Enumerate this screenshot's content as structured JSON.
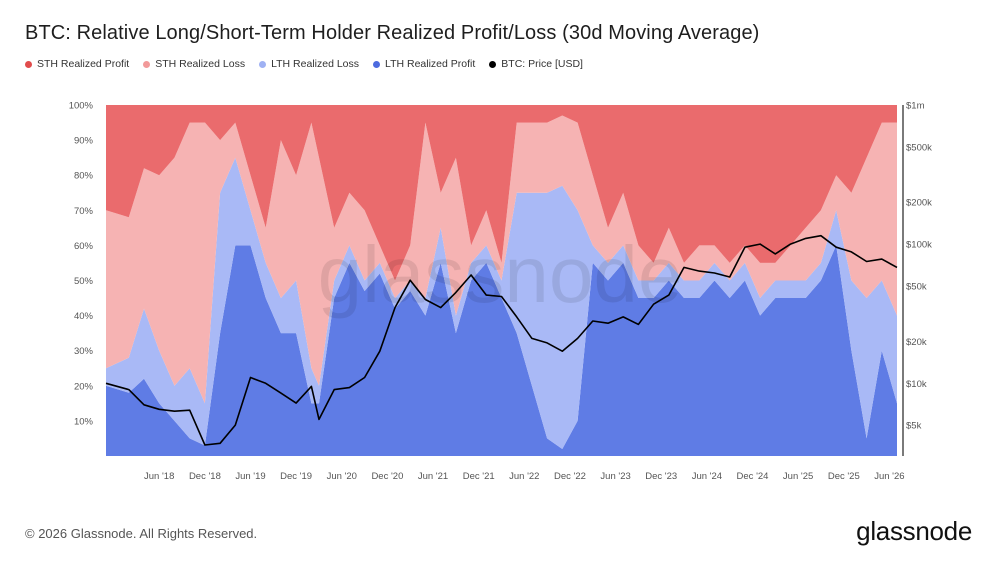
{
  "chart_data": {
    "type": "area",
    "title": "BTC: Relative Long/Short-Term Holder Realized Profit/Loss (30d Moving Average)",
    "stacking": "100% stacked",
    "x": [
      "2017-11",
      "2018-02",
      "2018-04",
      "2018-06",
      "2018-08",
      "2018-10",
      "2018-12",
      "2019-02",
      "2019-04",
      "2019-06",
      "2019-08",
      "2019-10",
      "2019-12",
      "2020-02",
      "2020-03",
      "2020-05",
      "2020-07",
      "2020-09",
      "2020-11",
      "2021-01",
      "2021-03",
      "2021-05",
      "2021-07",
      "2021-09",
      "2021-11",
      "2022-01",
      "2022-03",
      "2022-05",
      "2022-07",
      "2022-09",
      "2022-11",
      "2023-01",
      "2023-03",
      "2023-05",
      "2023-07",
      "2023-09",
      "2023-11",
      "2024-01",
      "2024-03",
      "2024-05",
      "2024-07",
      "2024-09",
      "2024-11",
      "2025-01",
      "2025-03",
      "2025-05",
      "2025-07",
      "2025-09",
      "2025-11",
      "2026-01",
      "2026-03",
      "2026-05",
      "2026-07"
    ],
    "x_tick_labels": [
      "Jun '18",
      "Dec '18",
      "Jun '19",
      "Dec '19",
      "Jun '20",
      "Dec '20",
      "Jun '21",
      "Dec '21",
      "Jun '22",
      "Dec '22",
      "Jun '23",
      "Dec '23",
      "Jun '24",
      "Dec '24",
      "Jun '25",
      "Dec '25",
      "Jun '26"
    ],
    "y_left_ticks": [
      "100%",
      "90%",
      "80%",
      "70%",
      "60%",
      "50%",
      "40%",
      "30%",
      "20%",
      "10%"
    ],
    "y_right_ticks": [
      "$1m",
      "$500k",
      "$200k",
      "$100k",
      "$50k",
      "$20k",
      "$10k",
      "$5k"
    ],
    "y_right_scale": "log",
    "series": [
      {
        "name": "STH Realized Profit",
        "color": "#ea6b6d",
        "values": [
          30,
          32,
          18,
          20,
          15,
          5,
          5,
          10,
          5,
          20,
          35,
          10,
          20,
          5,
          15,
          35,
          25,
          30,
          40,
          50,
          40,
          5,
          25,
          15,
          40,
          30,
          45,
          5,
          5,
          5,
          3,
          5,
          20,
          35,
          25,
          40,
          45,
          35,
          45,
          40,
          40,
          45,
          40,
          45,
          45,
          40,
          35,
          30,
          20,
          25,
          15,
          5,
          5
        ]
      },
      {
        "name": "STH Realized Loss",
        "color": "#f6b3b3",
        "values": [
          45,
          40,
          40,
          50,
          65,
          70,
          80,
          15,
          10,
          10,
          10,
          45,
          30,
          70,
          65,
          15,
          15,
          20,
          5,
          5,
          10,
          50,
          10,
          45,
          5,
          10,
          5,
          20,
          20,
          20,
          20,
          25,
          20,
          10,
          15,
          10,
          5,
          10,
          5,
          10,
          5,
          5,
          5,
          10,
          5,
          10,
          15,
          15,
          10,
          25,
          40,
          45,
          55
        ]
      },
      {
        "name": "LTH Realized Loss",
        "color": "#a9b9f6",
        "values": [
          5,
          10,
          20,
          15,
          10,
          20,
          12,
          40,
          25,
          10,
          10,
          10,
          15,
          10,
          5,
          5,
          5,
          3,
          3,
          3,
          3,
          5,
          10,
          5,
          5,
          5,
          5,
          40,
          55,
          70,
          75,
          60,
          5,
          5,
          5,
          5,
          5,
          5,
          5,
          5,
          5,
          5,
          5,
          5,
          5,
          5,
          5,
          5,
          10,
          20,
          40,
          20,
          25
        ]
      },
      {
        "name": "LTH Realized Profit",
        "color": "#5f7ce5",
        "values": [
          20,
          18,
          22,
          15,
          10,
          5,
          3,
          35,
          60,
          60,
          45,
          35,
          35,
          15,
          15,
          45,
          55,
          47,
          52,
          42,
          47,
          40,
          55,
          35,
          50,
          55,
          45,
          35,
          20,
          5,
          2,
          10,
          55,
          50,
          55,
          45,
          45,
          50,
          45,
          45,
          50,
          45,
          50,
          40,
          45,
          45,
          45,
          50,
          60,
          30,
          5,
          30,
          15
        ]
      },
      {
        "name": "BTC: Price [USD]",
        "color": "#000000",
        "values": [
          10000,
          9000,
          7000,
          6500,
          6300,
          6400,
          3600,
          3700,
          5000,
          11000,
          10000,
          8500,
          7200,
          9500,
          5500,
          9000,
          9300,
          11000,
          17000,
          35000,
          55000,
          40000,
          35000,
          45000,
          60000,
          43000,
          42000,
          30000,
          21000,
          19500,
          17000,
          21000,
          28000,
          27000,
          30000,
          26500,
          37000,
          43000,
          68000,
          64000,
          62000,
          58000,
          95000,
          100000,
          85000,
          100000,
          110000,
          115000,
          95000,
          88000,
          75000,
          78000,
          68000
        ]
      }
    ]
  },
  "legend": [
    {
      "label": "STH Realized Profit",
      "color": "#e14c4c"
    },
    {
      "label": "STH Realized Loss",
      "color": "#f29a9a"
    },
    {
      "label": "LTH Realized Loss",
      "color": "#9fb1f3"
    },
    {
      "label": "LTH Realized Profit",
      "color": "#4d6bdf"
    },
    {
      "label": "BTC: Price [USD]",
      "color": "#000000"
    }
  ],
  "watermark": "glassnode",
  "footer": "© 2026 Glassnode. All Rights Reserved.",
  "brand": "glassnode"
}
